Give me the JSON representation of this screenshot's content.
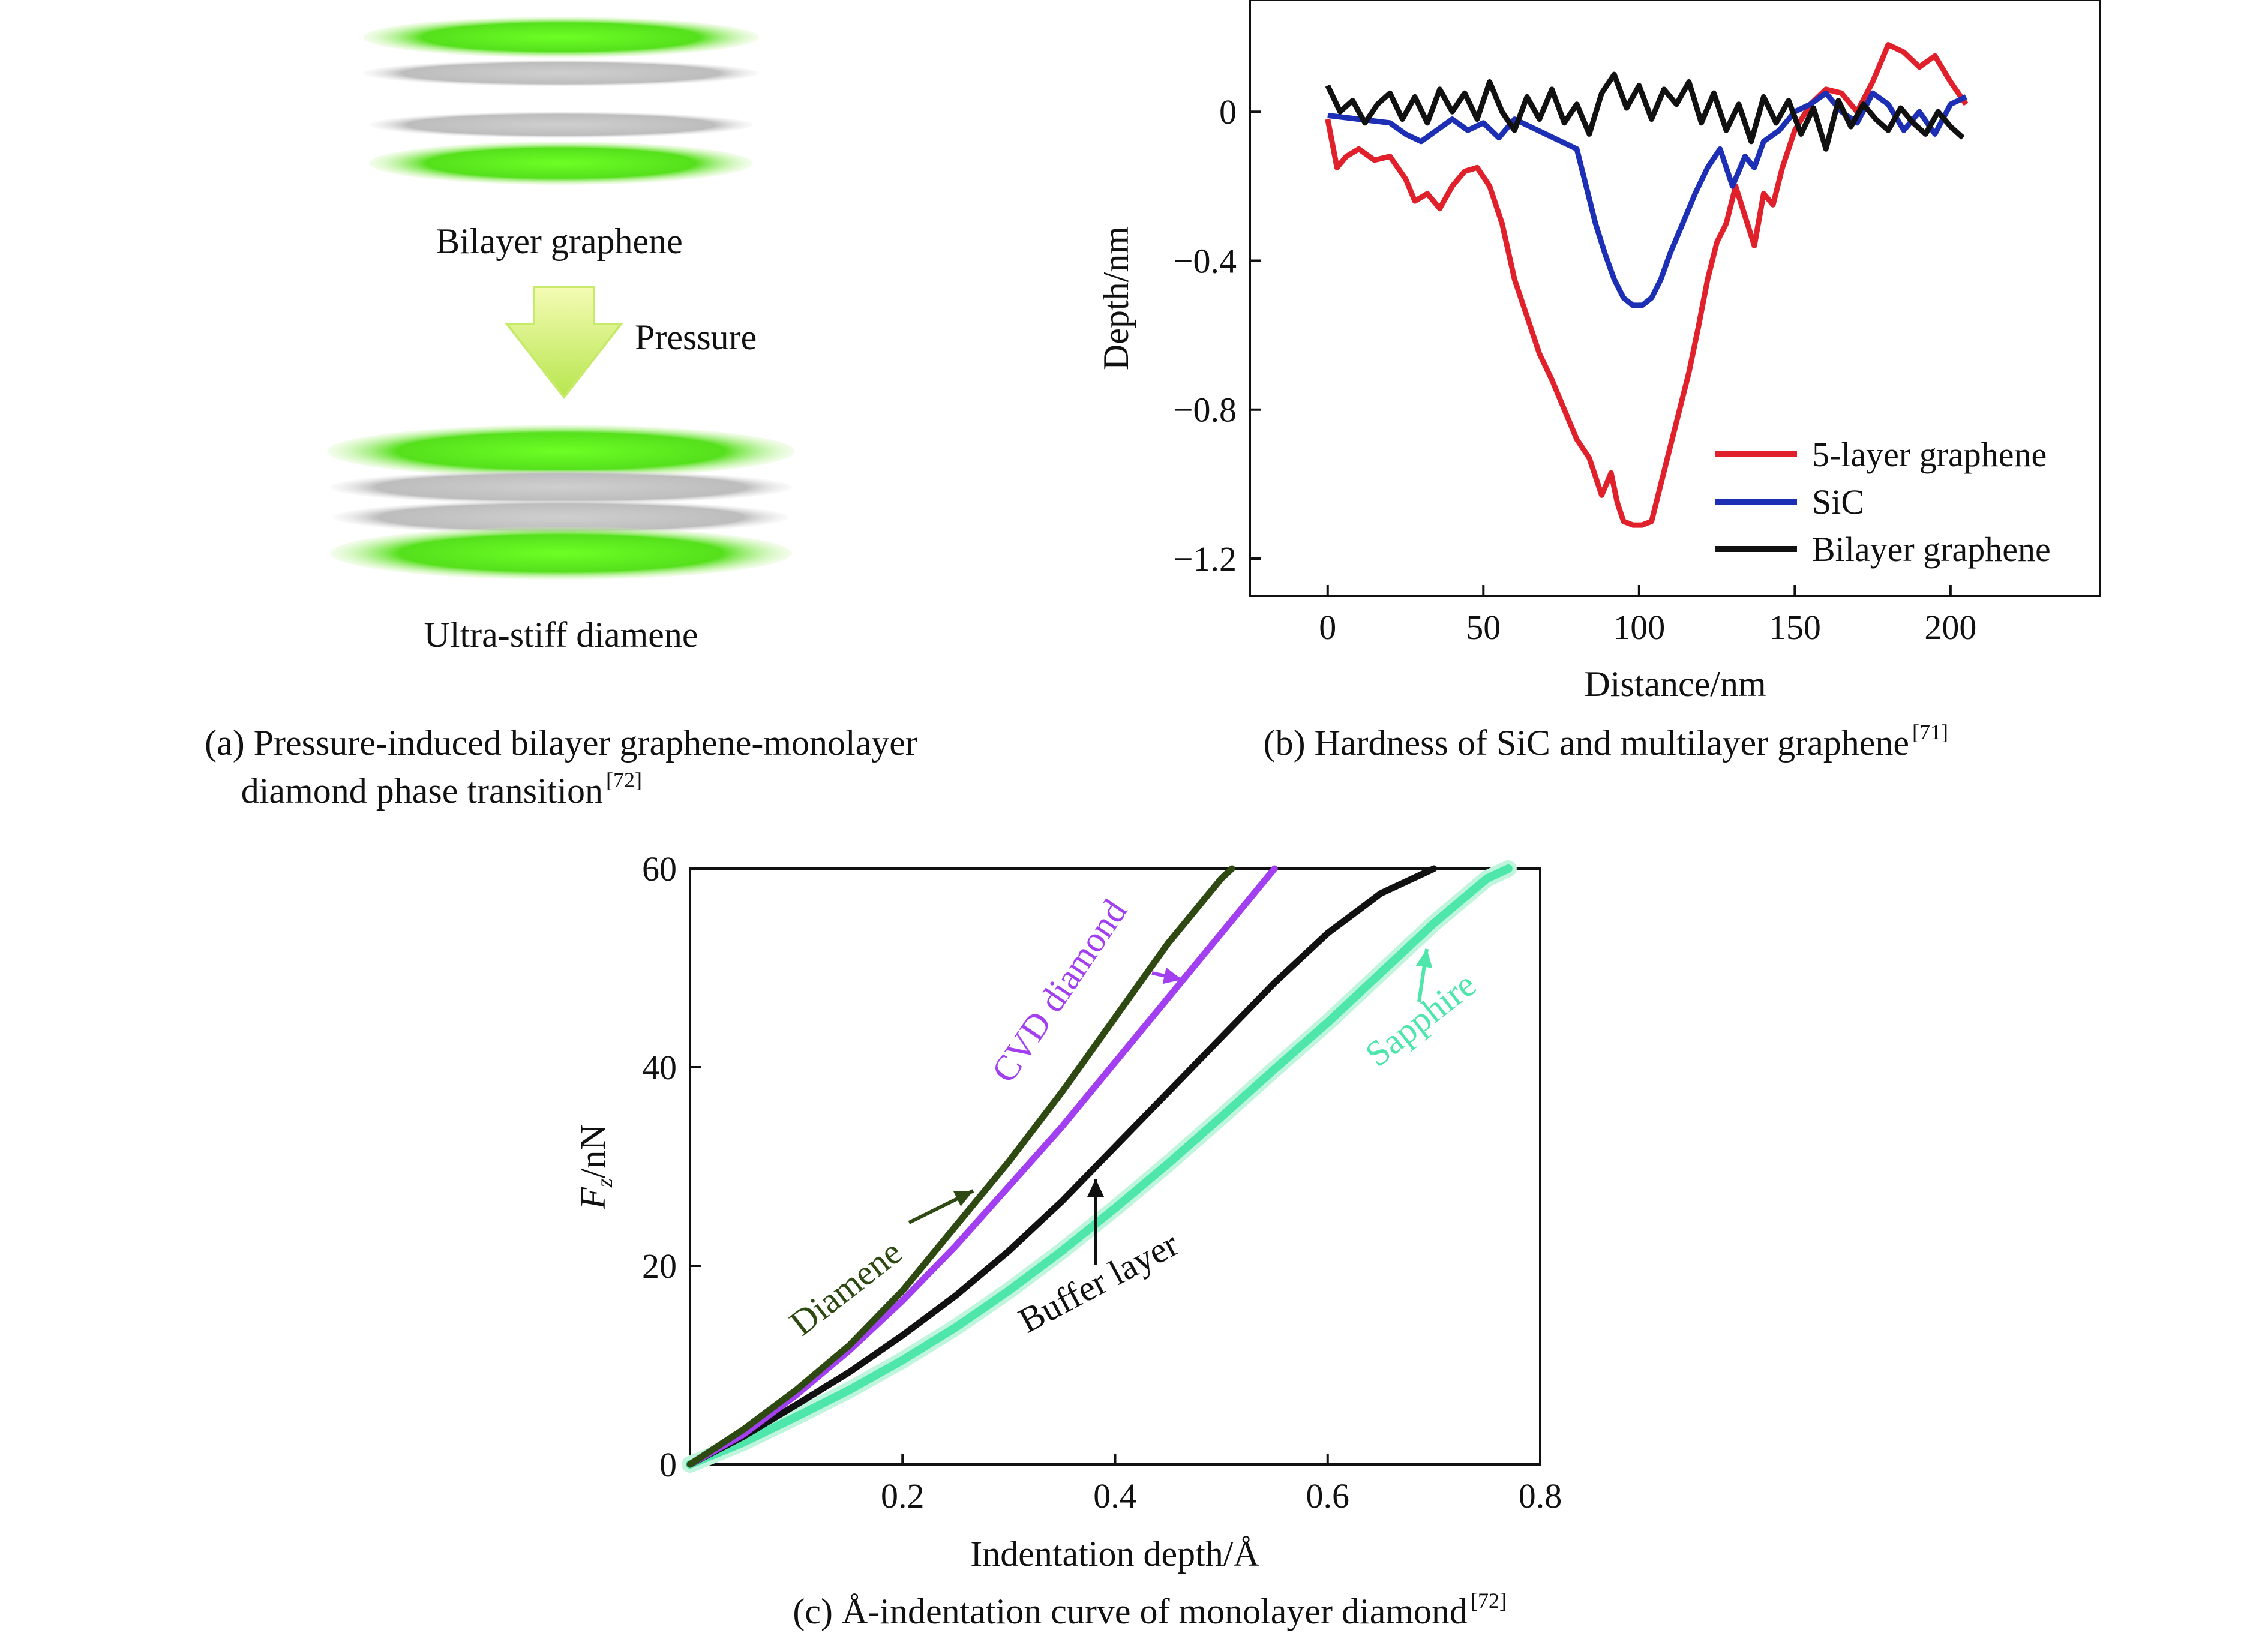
{
  "panel_a": {
    "top_label": "Bilayer graphene",
    "arrow_label": "Pressure",
    "bottom_label": "Ultra-stiff diamene",
    "caption_line1": "(a) Pressure-induced bilayer graphene-monolayer",
    "caption_line2": "diamond phase transition",
    "caption_ref": "[72]",
    "colors": {
      "layer": "#55e01c",
      "core": "#c8c8c8",
      "arrow": "#d8f27a"
    }
  },
  "panel_b_caption": {
    "text": "(b) Hardness of SiC and multilayer graphene",
    "ref": "[71]"
  },
  "panel_c_caption": {
    "text": "(c) Å-indentation curve of monolayer diamond",
    "ref": "[72]"
  },
  "chart_data": [
    {
      "type": "line",
      "xlabel": "Distance/nm",
      "ylabel": "Depth/nm",
      "xlim": [
        -25,
        248
      ],
      "ylim": [
        -1.3,
        0.3
      ],
      "xticks": [
        0,
        50,
        100,
        150,
        200
      ],
      "yticks": [
        0,
        -0.4,
        -0.8,
        -1.2
      ],
      "xtick_labels": [
        "0",
        "50",
        "100",
        "150",
        "200"
      ],
      "ytick_labels": [
        "0",
        "−0.4",
        "−0.8",
        "−1.2"
      ],
      "grid": false,
      "legend": "bottom-right",
      "series": [
        {
          "name": "5-layer graphene",
          "color": "#e0202a",
          "x": [
            0,
            3,
            6,
            10,
            15,
            20,
            25,
            28,
            32,
            36,
            40,
            44,
            48,
            52,
            56,
            60,
            64,
            68,
            72,
            76,
            80,
            84,
            88,
            91,
            93,
            95,
            98,
            101,
            104,
            107,
            110,
            113,
            116,
            119,
            122,
            125,
            128,
            131,
            134,
            137,
            140,
            143,
            146,
            150,
            155,
            160,
            165,
            170,
            175,
            180,
            185,
            190,
            195,
            200,
            205
          ],
          "y": [
            -0.02,
            -0.15,
            -0.12,
            -0.1,
            -0.13,
            -0.12,
            -0.18,
            -0.24,
            -0.22,
            -0.26,
            -0.2,
            -0.16,
            -0.15,
            -0.2,
            -0.3,
            -0.45,
            -0.55,
            -0.65,
            -0.72,
            -0.8,
            -0.88,
            -0.93,
            -1.03,
            -0.97,
            -1.05,
            -1.1,
            -1.11,
            -1.11,
            -1.1,
            -1.0,
            -0.9,
            -0.8,
            -0.7,
            -0.58,
            -0.45,
            -0.35,
            -0.3,
            -0.2,
            -0.28,
            -0.36,
            -0.22,
            -0.25,
            -0.15,
            -0.05,
            0.02,
            0.06,
            0.05,
            0.0,
            0.08,
            0.18,
            0.16,
            0.12,
            0.15,
            0.08,
            0.02
          ]
        },
        {
          "name": "SiC",
          "color": "#1c2fb5",
          "x": [
            0,
            10,
            20,
            25,
            30,
            35,
            40,
            45,
            50,
            55,
            60,
            65,
            70,
            75,
            80,
            83,
            86,
            89,
            92,
            95,
            98,
            101,
            104,
            107,
            110,
            114,
            118,
            122,
            126,
            130,
            134,
            137,
            140,
            145,
            150,
            155,
            160,
            165,
            170,
            175,
            180,
            185,
            190,
            195,
            200,
            205
          ],
          "y": [
            -0.01,
            -0.02,
            -0.03,
            -0.06,
            -0.08,
            -0.05,
            -0.02,
            -0.05,
            -0.03,
            -0.07,
            -0.02,
            -0.04,
            -0.06,
            -0.08,
            -0.1,
            -0.2,
            -0.3,
            -0.38,
            -0.45,
            -0.5,
            -0.52,
            -0.52,
            -0.5,
            -0.45,
            -0.38,
            -0.3,
            -0.22,
            -0.15,
            -0.1,
            -0.2,
            -0.12,
            -0.15,
            -0.08,
            -0.05,
            0.0,
            0.02,
            0.05,
            0.0,
            -0.03,
            0.05,
            0.02,
            -0.05,
            0.0,
            -0.06,
            0.02,
            0.04
          ]
        },
        {
          "name": "Bilayer graphene",
          "color": "#111111",
          "x": [
            0,
            4,
            8,
            12,
            16,
            20,
            24,
            28,
            32,
            36,
            40,
            44,
            48,
            52,
            56,
            60,
            64,
            68,
            72,
            76,
            80,
            84,
            88,
            92,
            96,
            100,
            104,
            108,
            112,
            116,
            120,
            124,
            128,
            132,
            136,
            140,
            144,
            148,
            152,
            156,
            160,
            164,
            168,
            172,
            176,
            180,
            184,
            188,
            192,
            196,
            200,
            204
          ],
          "y": [
            0.07,
            0.0,
            0.03,
            -0.03,
            0.02,
            0.05,
            -0.02,
            0.04,
            -0.03,
            0.06,
            0.0,
            0.05,
            -0.02,
            0.08,
            0.0,
            -0.05,
            0.04,
            -0.02,
            0.06,
            -0.03,
            0.02,
            -0.06,
            0.05,
            0.1,
            0.01,
            0.07,
            -0.02,
            0.06,
            0.02,
            0.08,
            -0.03,
            0.05,
            -0.05,
            0.02,
            -0.08,
            0.04,
            -0.03,
            0.03,
            -0.06,
            0.01,
            -0.1,
            0.03,
            -0.04,
            0.02,
            -0.02,
            -0.05,
            0.01,
            -0.03,
            -0.06,
            0.0,
            -0.04,
            -0.07
          ]
        }
      ]
    },
    {
      "type": "line",
      "xlabel": "Indentation depth/Å",
      "ylabel_italic": "F",
      "ylabel_sub": "z",
      "ylabel_rest": "/nN",
      "xlim": [
        0,
        0.8
      ],
      "ylim": [
        0,
        60
      ],
      "xticks": [
        0.2,
        0.4,
        0.6,
        0.8
      ],
      "yticks": [
        0,
        20,
        40,
        60
      ],
      "xtick_labels": [
        "0.2",
        "0.4",
        "0.6",
        "0.8"
      ],
      "ytick_labels": [
        "0",
        "20",
        "40",
        "60"
      ],
      "grid": false,
      "series": [
        {
          "name": "Diamene",
          "color": "#2e4a12",
          "x": [
            0,
            0.05,
            0.1,
            0.15,
            0.2,
            0.25,
            0.3,
            0.35,
            0.4,
            0.45,
            0.5,
            0.51
          ],
          "y": [
            0,
            3.5,
            7.5,
            12,
            17.5,
            24,
            30.5,
            37.5,
            45,
            52.5,
            59,
            60
          ]
        },
        {
          "name": "CVD diamond",
          "color": "#a23ff0",
          "x": [
            0,
            0.05,
            0.1,
            0.15,
            0.2,
            0.25,
            0.3,
            0.35,
            0.4,
            0.45,
            0.5,
            0.55
          ],
          "y": [
            0,
            3,
            7,
            11.5,
            16.5,
            22,
            28,
            34,
            40.5,
            47,
            53.5,
            60
          ]
        },
        {
          "name": "Buffer layer",
          "color": "#111111",
          "x": [
            0,
            0.05,
            0.1,
            0.15,
            0.2,
            0.25,
            0.3,
            0.35,
            0.4,
            0.45,
            0.5,
            0.55,
            0.6,
            0.65,
            0.7
          ],
          "y": [
            0,
            2.8,
            6,
            9.3,
            13,
            17,
            21.5,
            26.5,
            32,
            37.5,
            43,
            48.5,
            53.5,
            57.5,
            60
          ]
        },
        {
          "name": "Sapphire",
          "color": "#4fe6ac",
          "x": [
            0,
            0.05,
            0.1,
            0.15,
            0.2,
            0.25,
            0.3,
            0.35,
            0.4,
            0.45,
            0.5,
            0.55,
            0.6,
            0.65,
            0.7,
            0.75,
            0.77
          ],
          "y": [
            0,
            2.2,
            4.8,
            7.5,
            10.5,
            13.8,
            17.5,
            21.5,
            25.8,
            30.3,
            35,
            39.8,
            44.5,
            49.5,
            54.5,
            59,
            60
          ]
        }
      ],
      "annotations": [
        {
          "text": "Diamene",
          "color": "#2e4a12"
        },
        {
          "text": "CVD diamond",
          "color": "#a23ff0"
        },
        {
          "text": "Buffer layer",
          "color": "#111111"
        },
        {
          "text": "Sapphire",
          "color": "#4fe6ac"
        }
      ]
    }
  ]
}
